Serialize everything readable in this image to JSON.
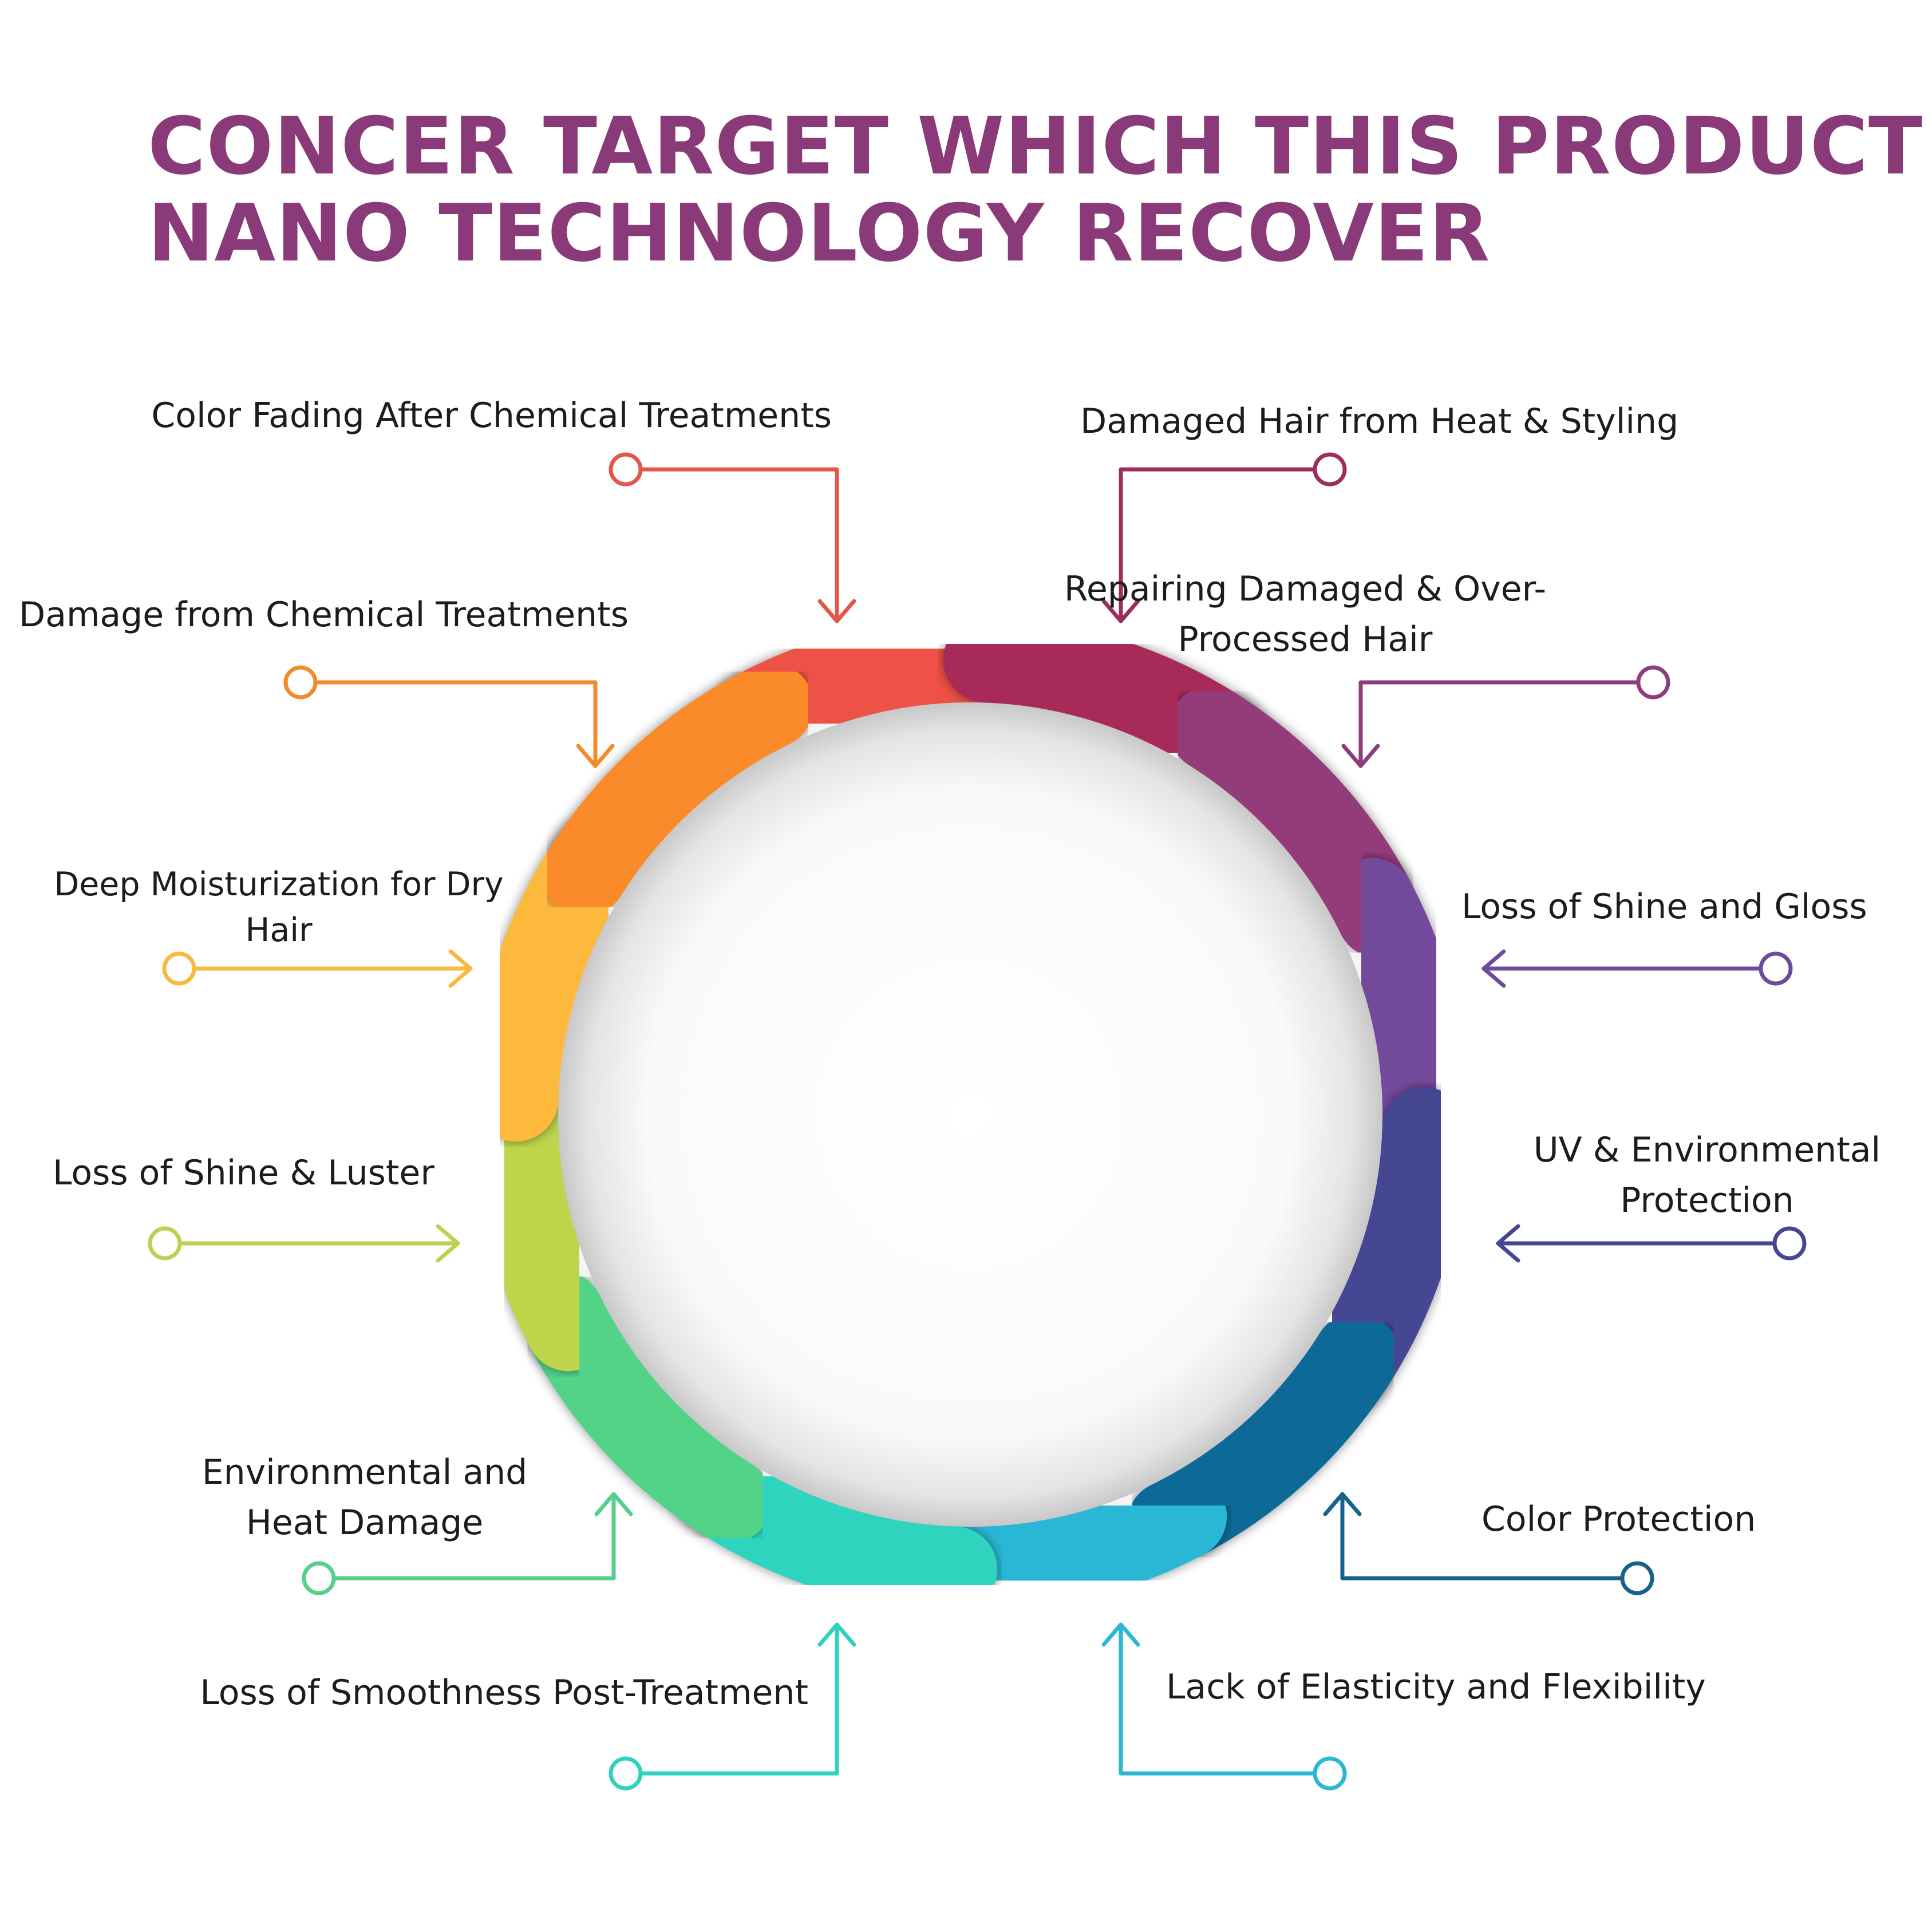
{
  "title": {
    "line1": "CONCER TARGET WHICH THIS PRODUCT",
    "line2": "NANO TECHNOLOGY RECOVER"
  },
  "labels": {
    "color_fading": "Color Fading After Chemical Treatments",
    "damaged_heat": "Damaged Hair from Heat & Styling",
    "repairing_1": "Repairing Damaged & Over-",
    "repairing_2": "Processed Hair",
    "damage_chemical": "Damage from Chemical Treatments",
    "deep_moist_1": "Deep Moisturization for Dry",
    "deep_moist_2": "Hair",
    "loss_shine_gloss": "Loss of Shine and Gloss",
    "loss_shine_luster": "Loss of Shine & Luster",
    "uv_1": "UV & Environmental",
    "uv_2": "Protection",
    "env_heat_1": "Environmental and",
    "env_heat_2": "Heat Damage",
    "color_protection": "Color Protection",
    "smoothness": "Loss of Smoothness Post-Treatment",
    "elasticity": "Lack of Elasticity and Flexibility"
  },
  "colors": {
    "title": "#8a3a78",
    "segments": [
      "#ee5145",
      "#a82c58",
      "#943a7a",
      "#734a9b",
      "#454693",
      "#0f6a98",
      "#2ab6d5",
      "#2dd4bd",
      "#52d388",
      "#bdd44c",
      "#fdb93b",
      "#fb8a2c"
    ],
    "connectors": {
      "color_fading": "#e2574a",
      "damaged_heat": "#9b2e5c",
      "repairing": "#8d3d7c",
      "damage_chemical": "#f38a2c",
      "deep_moist": "#f8b940",
      "loss_shine_gloss": "#6b4c9c",
      "loss_shine_luster": "#b9d350",
      "uv": "#464596",
      "env_heat": "#55cf8a",
      "color_protection": "#15628c",
      "smoothness": "#2fd2bd",
      "elasticity": "#2bb8d2"
    }
  },
  "icons": [
    "ring-segment",
    "circle-marker",
    "arrow-head"
  ]
}
